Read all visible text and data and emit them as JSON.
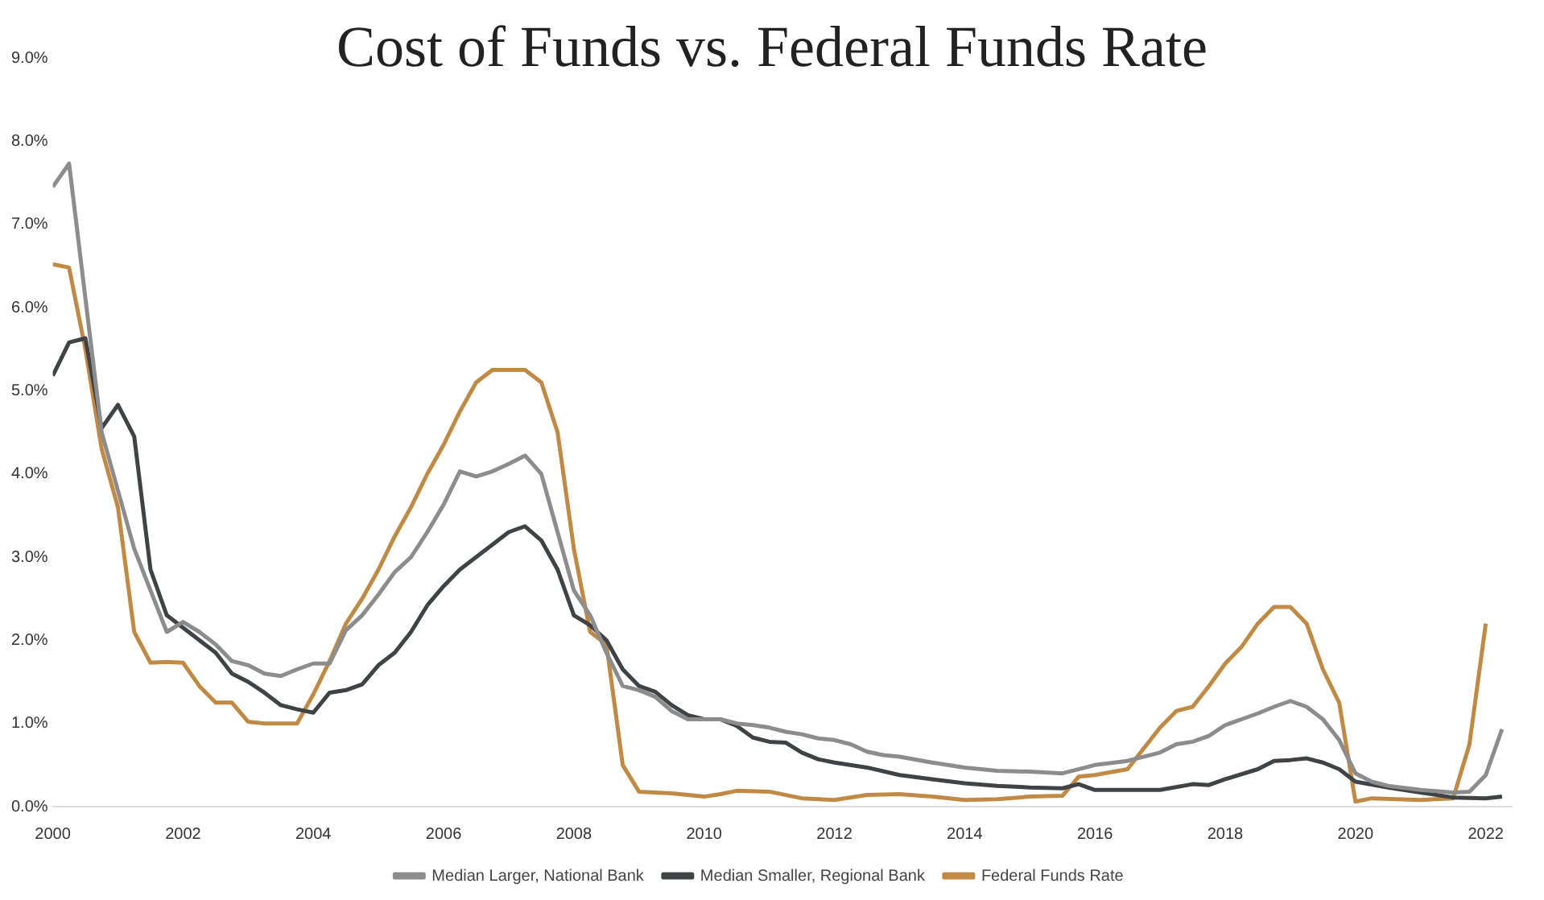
{
  "chart_data": {
    "type": "line",
    "title": "Cost of Funds vs. Federal Funds Rate",
    "xlim": [
      2000,
      2022.4
    ],
    "xticks": [
      2000,
      2002,
      2004,
      2006,
      2008,
      2010,
      2012,
      2014,
      2016,
      2018,
      2020,
      2022
    ],
    "ylim": [
      0,
      9
    ],
    "yticks": [
      {
        "value": 0,
        "label": "0.0%"
      },
      {
        "value": 1,
        "label": "1.0%"
      },
      {
        "value": 2,
        "label": "2.0%"
      },
      {
        "value": 3,
        "label": "3.0%"
      },
      {
        "value": 4,
        "label": "4.0%"
      },
      {
        "value": 5,
        "label": "5.0%"
      },
      {
        "value": 6,
        "label": "6.0%"
      },
      {
        "value": 7,
        "label": "7.0%"
      },
      {
        "value": 8,
        "label": "8.0%"
      },
      {
        "value": 9,
        "label": "9.0%"
      }
    ],
    "grid": false,
    "legend": "bottom",
    "marker": "none",
    "line_style": "solid",
    "series": [
      {
        "name": "Median Larger, National Bank",
        "color": "#8c8c8c",
        "x": [
          2000,
          2000.25,
          2000.75,
          2001,
          2001.25,
          2001.5,
          2001.75,
          2002,
          2002.25,
          2002.5,
          2002.75,
          2003,
          2003.25,
          2003.5,
          2003.75,
          2004,
          2004.25,
          2004.5,
          2004.75,
          2005,
          2005.25,
          2005.5,
          2005.75,
          2006,
          2006.25,
          2006.5,
          2006.75,
          2007,
          2007.25,
          2007.5,
          2007.75,
          2008,
          2008.25,
          2008.5,
          2008.75,
          2009,
          2009.25,
          2009.5,
          2009.75,
          2010,
          2010.25,
          2010.5,
          2010.75,
          2011,
          2011.25,
          2011.5,
          2011.75,
          2012,
          2012.25,
          2012.5,
          2012.75,
          2013,
          2013.5,
          2014,
          2014.5,
          2015,
          2015.5,
          2016,
          2016.5,
          2017,
          2017.25,
          2017.5,
          2017.75,
          2018,
          2018.25,
          2018.5,
          2018.75,
          2019,
          2019.25,
          2019.5,
          2019.75,
          2020,
          2020.25,
          2020.5,
          2021,
          2021.5,
          2021.75,
          2022,
          2022.25
        ],
        "values": [
          7.45,
          7.73,
          4.5,
          3.8,
          3.1,
          2.6,
          2.1,
          2.22,
          2.1,
          1.95,
          1.75,
          1.7,
          1.6,
          1.57,
          1.65,
          1.72,
          1.72,
          2.12,
          2.3,
          2.55,
          2.82,
          3.0,
          3.3,
          3.63,
          4.03,
          3.97,
          4.03,
          4.12,
          4.22,
          4.0,
          3.3,
          2.6,
          2.3,
          1.85,
          1.45,
          1.4,
          1.32,
          1.15,
          1.05,
          1.05,
          1.05,
          1.0,
          0.98,
          0.95,
          0.9,
          0.87,
          0.82,
          0.8,
          0.75,
          0.66,
          0.62,
          0.6,
          0.53,
          0.47,
          0.43,
          0.42,
          0.4,
          0.5,
          0.55,
          0.65,
          0.75,
          0.78,
          0.85,
          0.98,
          1.05,
          1.12,
          1.2,
          1.27,
          1.2,
          1.05,
          0.8,
          0.4,
          0.3,
          0.25,
          0.2,
          0.17,
          0.18,
          0.38,
          0.93
        ]
      },
      {
        "name": "Median Smaller, Regional Bank",
        "color": "#3f4346",
        "x": [
          2000,
          2000.25,
          2000.5,
          2000.75,
          2001,
          2001.25,
          2001.5,
          2001.75,
          2002,
          2002.25,
          2002.5,
          2002.75,
          2003,
          2003.25,
          2003.5,
          2003.75,
          2004,
          2004.25,
          2004.5,
          2004.75,
          2005,
          2005.25,
          2005.5,
          2005.75,
          2006,
          2006.25,
          2006.5,
          2006.75,
          2007,
          2007.25,
          2007.5,
          2007.75,
          2008,
          2008.25,
          2008.5,
          2008.75,
          2009,
          2009.25,
          2009.5,
          2009.75,
          2010,
          2010.25,
          2010.5,
          2010.75,
          2011,
          2011.25,
          2011.5,
          2011.75,
          2012,
          2012.5,
          2013,
          2013.5,
          2014,
          2014.5,
          2015,
          2015.5,
          2015.75,
          2016,
          2016.5,
          2017,
          2017.5,
          2017.75,
          2018,
          2018.5,
          2018.75,
          2019,
          2019.25,
          2019.5,
          2019.75,
          2020,
          2020.5,
          2021,
          2021.5,
          2022,
          2022.25
        ],
        "values": [
          5.18,
          5.58,
          5.63,
          4.55,
          4.83,
          4.45,
          2.85,
          2.3,
          2.15,
          2.0,
          1.85,
          1.6,
          1.5,
          1.37,
          1.22,
          1.17,
          1.13,
          1.37,
          1.4,
          1.47,
          1.7,
          1.85,
          2.1,
          2.42,
          2.65,
          2.85,
          3.0,
          3.15,
          3.3,
          3.37,
          3.2,
          2.85,
          2.3,
          2.18,
          2.0,
          1.65,
          1.45,
          1.38,
          1.22,
          1.1,
          1.05,
          1.05,
          0.97,
          0.83,
          0.78,
          0.77,
          0.65,
          0.57,
          0.53,
          0.47,
          0.38,
          0.33,
          0.28,
          0.25,
          0.23,
          0.22,
          0.27,
          0.2,
          0.2,
          0.2,
          0.27,
          0.26,
          0.33,
          0.45,
          0.55,
          0.56,
          0.58,
          0.53,
          0.45,
          0.3,
          0.23,
          0.17,
          0.11,
          0.1,
          0.12
        ]
      },
      {
        "name": "Federal Funds Rate",
        "color": "#c08a45",
        "x": [
          2000,
          2000.25,
          2000.5,
          2000.75,
          2001,
          2001.25,
          2001.5,
          2001.75,
          2002,
          2002.25,
          2002.5,
          2002.75,
          2003,
          2003.25,
          2003.5,
          2003.75,
          2004,
          2004.25,
          2004.5,
          2004.75,
          2005,
          2005.25,
          2005.5,
          2005.75,
          2006,
          2006.25,
          2006.5,
          2006.75,
          2007,
          2007.25,
          2007.5,
          2007.75,
          2008,
          2008.25,
          2008.5,
          2008.75,
          2009,
          2009.5,
          2010,
          2010.25,
          2010.5,
          2011,
          2011.5,
          2012,
          2012.5,
          2013,
          2013.5,
          2014,
          2014.5,
          2015,
          2015.5,
          2015.75,
          2016,
          2016.5,
          2017,
          2017.25,
          2017.5,
          2017.75,
          2018,
          2018.25,
          2018.5,
          2018.75,
          2019,
          2019.25,
          2019.5,
          2019.75,
          2020,
          2020.25,
          2021,
          2021.5,
          2021.75,
          2022
        ],
        "values": [
          6.52,
          6.48,
          5.5,
          4.3,
          3.6,
          2.1,
          1.73,
          1.74,
          1.73,
          1.45,
          1.25,
          1.25,
          1.02,
          1.0,
          1.0,
          1.0,
          1.35,
          1.75,
          2.2,
          2.5,
          2.85,
          3.25,
          3.6,
          4.0,
          4.35,
          4.75,
          5.1,
          5.25,
          5.25,
          5.25,
          5.1,
          4.5,
          3.1,
          2.1,
          1.95,
          0.5,
          0.18,
          0.16,
          0.12,
          0.15,
          0.19,
          0.18,
          0.1,
          0.08,
          0.14,
          0.15,
          0.12,
          0.08,
          0.09,
          0.12,
          0.13,
          0.36,
          0.38,
          0.45,
          0.95,
          1.15,
          1.2,
          1.45,
          1.72,
          1.92,
          2.2,
          2.4,
          2.4,
          2.2,
          1.65,
          1.25,
          0.06,
          0.1,
          0.08,
          0.1,
          0.75,
          2.2
        ]
      }
    ]
  }
}
